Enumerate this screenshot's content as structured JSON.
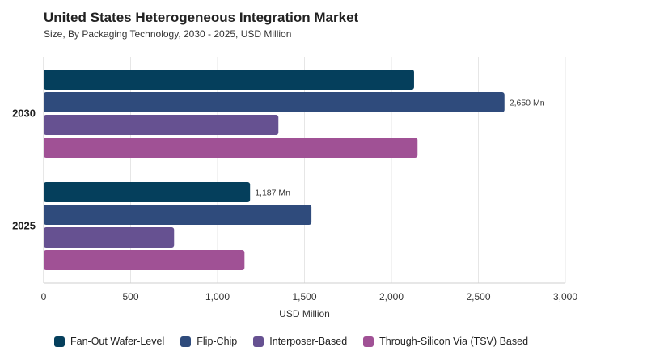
{
  "title": "United States Heterogeneous Integration Market",
  "subtitle": "Size, By Packaging Technology, 2030 - 2025, USD Million",
  "chart_data": {
    "type": "bar",
    "orientation": "horizontal",
    "categories": [
      "2030",
      "2025"
    ],
    "series": [
      {
        "name": "Fan-Out Wafer-Level",
        "color": "#053f5c",
        "values": [
          2130,
          1187
        ]
      },
      {
        "name": "Flip-Chip",
        "color": "#2f4b7c",
        "values": [
          2650,
          1540
        ]
      },
      {
        "name": "Interposer-Based",
        "color": "#665191",
        "values": [
          1350,
          750
        ]
      },
      {
        "name": "Through-Silicon Via (TSV) Based",
        "color": "#a05195",
        "values": [
          2150,
          1155
        ]
      }
    ],
    "data_labels": [
      {
        "category": "2030",
        "series": "Flip-Chip",
        "text": "2,650 Mn"
      },
      {
        "category": "2025",
        "series": "Fan-Out Wafer-Level",
        "text": "1,187 Mn"
      }
    ],
    "xlabel": "USD Million",
    "ylabel": "",
    "xlim": [
      0,
      3000
    ],
    "xticks": [
      0,
      500,
      1000,
      1500,
      2000,
      2500,
      3000
    ],
    "xtick_labels": [
      "0",
      "500",
      "1,000",
      "1,500",
      "2,000",
      "2,500",
      "3,000"
    ],
    "grid": true,
    "legend_position": "bottom-left"
  }
}
